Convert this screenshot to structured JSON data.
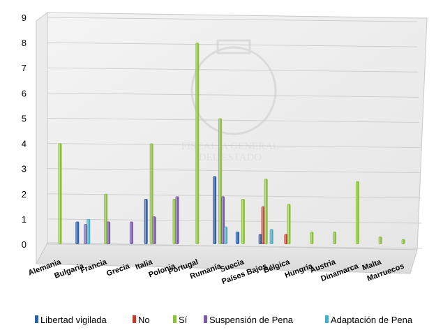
{
  "chart_data": {
    "type": "bar",
    "categories": [
      "Alemania",
      "Bulgaria",
      "Francia",
      "Grecia",
      "Italia",
      "Polonia",
      "Portugal",
      "Rumanía",
      "Suecia",
      "Países Bajos",
      "Bélgica",
      "Hungría",
      "Austria",
      "Dinamarca",
      "Malta",
      "Marruecos"
    ],
    "series": [
      {
        "name": "Libertad vigilada",
        "color": "#2e5fa8",
        "values": [
          0,
          0.9,
          0,
          0,
          1.8,
          0,
          0,
          2.7,
          0.5,
          0.4,
          0,
          0,
          0,
          0,
          0,
          0
        ]
      },
      {
        "name": "No",
        "color": "#c0392b",
        "values": [
          0,
          0,
          0,
          0,
          0,
          0,
          0,
          0,
          0,
          1.5,
          0.4,
          0,
          0,
          0,
          0,
          0
        ]
      },
      {
        "name": "Sí",
        "color": "#8cbf3f",
        "values": [
          4,
          0,
          2,
          0,
          4,
          1.8,
          8,
          5,
          1.8,
          2.6,
          1.6,
          0.5,
          0.5,
          2.5,
          0.3,
          0.2
        ]
      },
      {
        "name": "Suspensión de Pena",
        "color": "#7b5aa6",
        "values": [
          0,
          0.8,
          0.9,
          0.9,
          1.1,
          1.9,
          0,
          1.9,
          0,
          0,
          0,
          0,
          0,
          0,
          0,
          0
        ]
      },
      {
        "name": "Adaptación de Pena",
        "color": "#4bacc6",
        "values": [
          0,
          1,
          0,
          0,
          0,
          0,
          0,
          0.7,
          0,
          0.6,
          0,
          0,
          0,
          0,
          0,
          0
        ]
      }
    ],
    "ylim": [
      0,
      9
    ],
    "yticks": [
      "0",
      "1",
      "2",
      "3",
      "4",
      "5",
      "6",
      "7",
      "8",
      "9"
    ],
    "grid": true,
    "legend": "bottom",
    "watermark_text": [
      "FISCALÍA GENERAL",
      "DEL ESTADO"
    ]
  }
}
